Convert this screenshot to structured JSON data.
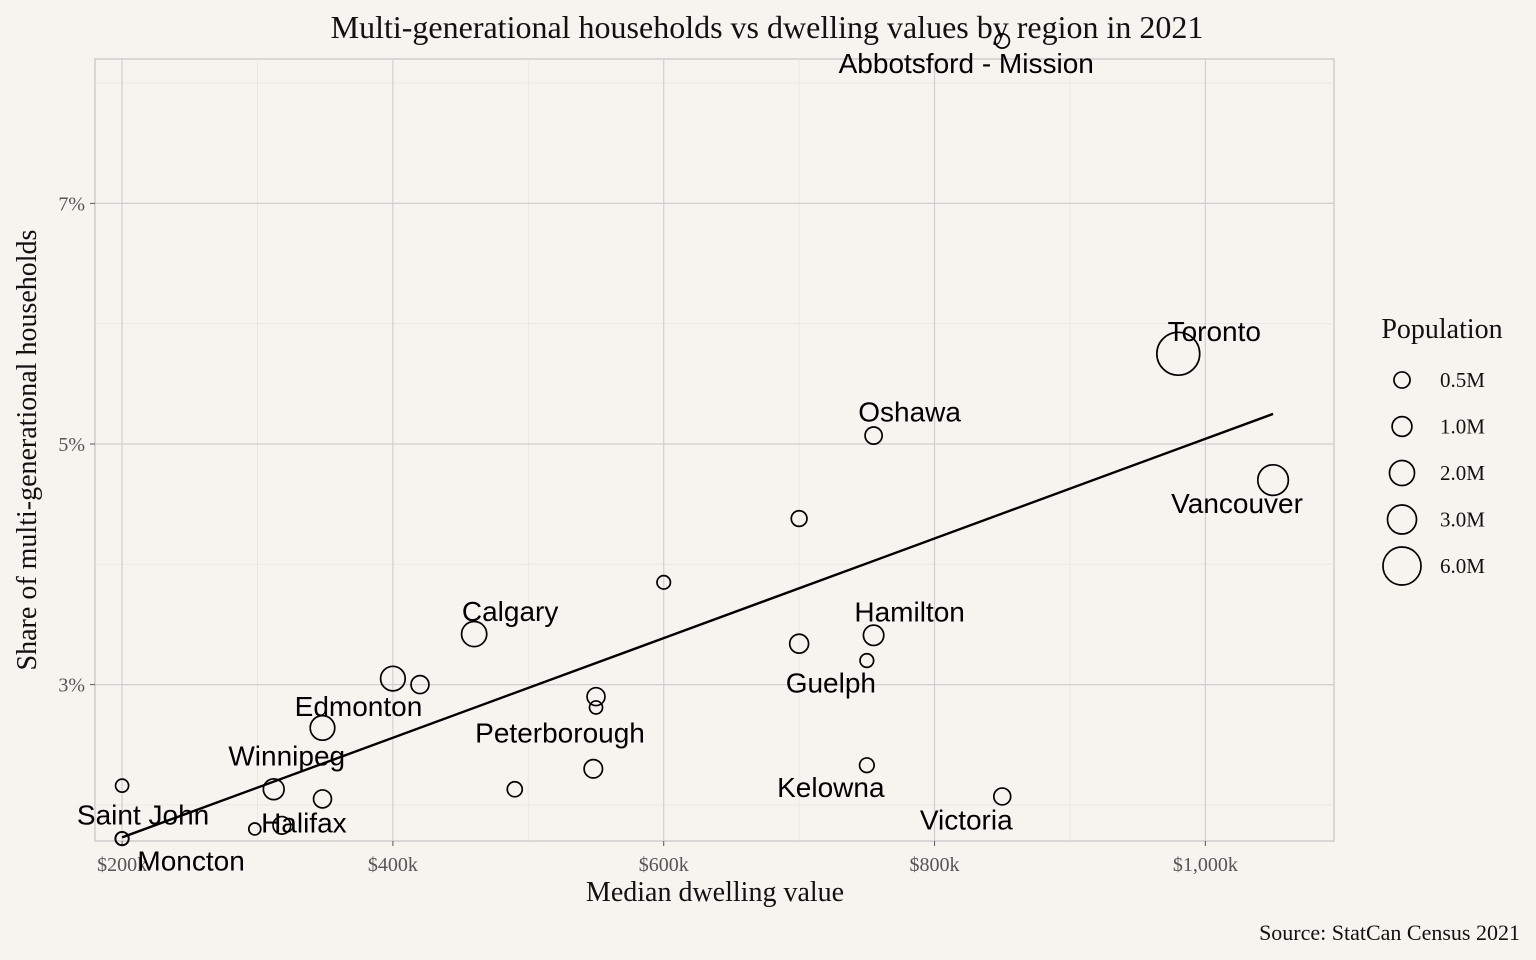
{
  "chart_data": {
    "type": "scatter",
    "title": "Multi-generational households vs dwelling values by region in 2021",
    "xlabel": "Median dwelling value",
    "ylabel": "Share of multi-generational households",
    "caption": "Source: StatCan Census 2021",
    "xlim": [
      180000,
      1095000
    ],
    "ylim": [
      1.7,
      8.2
    ],
    "x_ticks": [
      {
        "value": 200000,
        "label": "$200k"
      },
      {
        "value": 400000,
        "label": "$400k"
      },
      {
        "value": 600000,
        "label": "$600k"
      },
      {
        "value": 800000,
        "label": "$800k"
      },
      {
        "value": 1000000,
        "label": "$1,000k"
      }
    ],
    "y_ticks": [
      {
        "value": 3,
        "label": "3%"
      },
      {
        "value": 5,
        "label": "5%"
      },
      {
        "value": 7,
        "label": "7%"
      }
    ],
    "grid": true,
    "legend": {
      "title": "Population",
      "placement": "right",
      "entries": [
        {
          "label": "0.5M",
          "value": 0.5
        },
        {
          "label": "1.0M",
          "value": 1.0
        },
        {
          "label": "2.0M",
          "value": 2.0
        },
        {
          "label": "3.0M",
          "value": 3.0
        },
        {
          "label": "6.0M",
          "value": 6.0
        }
      ]
    },
    "points": [
      {
        "label": "Abbotsford - Mission",
        "x": 850000,
        "y": 8.35,
        "pop": 0.2
      },
      {
        "label": "Toronto",
        "x": 980000,
        "y": 5.75,
        "pop": 6.2
      },
      {
        "label": "Vancouver",
        "x": 1050000,
        "y": 4.7,
        "pop": 2.6
      },
      {
        "label": "Oshawa",
        "x": 755000,
        "y": 5.07,
        "pop": 0.42
      },
      {
        "label": "",
        "x": 700000,
        "y": 4.38,
        "pop": 0.3
      },
      {
        "label": "",
        "x": 600000,
        "y": 3.85,
        "pop": 0.15
      },
      {
        "label": "Calgary",
        "x": 460000,
        "y": 3.42,
        "pop": 1.5
      },
      {
        "label": "Hamilton",
        "x": 755000,
        "y": 3.41,
        "pop": 0.78
      },
      {
        "label": "",
        "x": 700000,
        "y": 3.34,
        "pop": 0.6
      },
      {
        "label": "Guelph",
        "x": 750000,
        "y": 3.2,
        "pop": 0.16
      },
      {
        "label": "",
        "x": 400000,
        "y": 3.05,
        "pop": 1.4
      },
      {
        "label": "",
        "x": 420000,
        "y": 3.0,
        "pop": 0.5
      },
      {
        "label": "",
        "x": 550000,
        "y": 2.9,
        "pop": 0.5
      },
      {
        "label": "Peterborough",
        "x": 550000,
        "y": 2.81,
        "pop": 0.13
      },
      {
        "label": "Edmonton",
        "x": 348000,
        "y": 2.64,
        "pop": 1.4
      },
      {
        "label": "",
        "x": 548000,
        "y": 2.3,
        "pop": 0.55
      },
      {
        "label": "Kelowna",
        "x": 750000,
        "y": 2.33,
        "pop": 0.22
      },
      {
        "label": "",
        "x": 200000,
        "y": 2.16,
        "pop": 0.13
      },
      {
        "label": "Winnipeg",
        "x": 312000,
        "y": 2.13,
        "pop": 0.83
      },
      {
        "label": "",
        "x": 490000,
        "y": 2.13,
        "pop": 0.25
      },
      {
        "label": "",
        "x": 348000,
        "y": 2.05,
        "pop": 0.5
      },
      {
        "label": "Victoria",
        "x": 850000,
        "y": 2.07,
        "pop": 0.4
      },
      {
        "label": "Halifax",
        "x": 318000,
        "y": 1.83,
        "pop": 0.47
      },
      {
        "label": "",
        "x": 298000,
        "y": 1.8,
        "pop": 0.08
      },
      {
        "label": "Saint John",
        "x": 200000,
        "y": 1.72,
        "pop": 0.13
      },
      {
        "label": "Moncton",
        "x": 200000,
        "y": 1.72,
        "pop": 0.16
      }
    ],
    "trend_line": {
      "x": [
        200000,
        1050000
      ],
      "y": [
        1.73,
        5.25
      ]
    }
  }
}
